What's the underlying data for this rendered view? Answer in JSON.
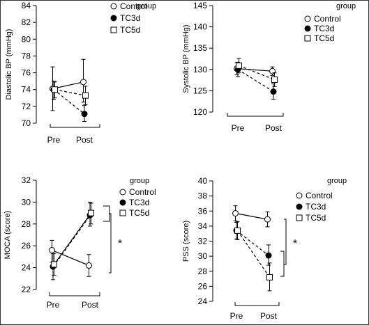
{
  "chart_data": [
    {
      "type": "line",
      "ylabel": "Diastolic BP (mmHg)",
      "x_categories": [
        "Pre",
        "Post"
      ],
      "yticks": [
        70,
        72,
        74,
        76,
        78,
        80,
        82,
        84
      ],
      "ylim": [
        70,
        84
      ],
      "legend_title": "group",
      "legend": [
        "Control",
        "TC3d",
        "TC5d"
      ],
      "series": [
        {
          "name": "Control",
          "marker": "open-circle",
          "values": [
            74.1,
            74.9
          ],
          "err_low": [
            71.5,
            72.5
          ],
          "err_high": [
            76.7,
            77.6
          ]
        },
        {
          "name": "TC3d",
          "marker": "filled-circle",
          "values": [
            74.0,
            71.1
          ],
          "err_low": [
            72.8,
            70.2
          ],
          "err_high": [
            75.0,
            72.1
          ]
        },
        {
          "name": "TC5d",
          "marker": "open-square",
          "values": [
            74.0,
            73.3
          ],
          "err_low": [
            73.0,
            72.2
          ],
          "err_high": [
            74.9,
            74.4
          ]
        }
      ],
      "brackets": []
    },
    {
      "type": "line",
      "ylabel": "Systolic BP (mmHg)",
      "x_categories": [
        "Pre",
        "Post"
      ],
      "yticks": [
        120,
        125,
        130,
        135,
        140,
        145
      ],
      "ylim": [
        120,
        145
      ],
      "legend_title": "group",
      "legend": [
        "Control",
        "TC3d",
        "TC5d"
      ],
      "series": [
        {
          "name": "Control",
          "marker": "open-circle",
          "values": [
            130.2,
            129.6
          ],
          "err_low": [
            128.8,
            128.6
          ],
          "err_high": [
            131.6,
            130.6
          ]
        },
        {
          "name": "TC3d",
          "marker": "filled-circle",
          "values": [
            130.0,
            124.8
          ],
          "err_low": [
            128.3,
            123.0
          ],
          "err_high": [
            131.7,
            126.6
          ]
        },
        {
          "name": "TC5d",
          "marker": "open-square",
          "values": [
            130.9,
            127.6
          ],
          "err_low": [
            129.2,
            126.0
          ],
          "err_high": [
            132.6,
            129.2
          ]
        }
      ],
      "brackets": []
    },
    {
      "type": "line",
      "ylabel": "MOCA (score)",
      "x_categories": [
        "Pre",
        "Post"
      ],
      "yticks": [
        22,
        24,
        26,
        28,
        30,
        32
      ],
      "ylim": [
        22,
        32
      ],
      "legend_title": "group",
      "legend": [
        "Control",
        "TC3d",
        "TC5d"
      ],
      "series": [
        {
          "name": "Control",
          "marker": "open-circle",
          "values": [
            25.6,
            24.2
          ],
          "err_low": [
            24.5,
            23.2
          ],
          "err_high": [
            26.5,
            25.2
          ]
        },
        {
          "name": "TC3d",
          "marker": "filled-circle",
          "values": [
            24.1,
            28.8
          ],
          "err_low": [
            22.9,
            27.8
          ],
          "err_high": [
            25.3,
            30.0
          ]
        },
        {
          "name": "TC5d",
          "marker": "open-square",
          "values": [
            24.3,
            29.0
          ],
          "err_low": [
            23.3,
            28.0
          ],
          "err_high": [
            25.3,
            29.9
          ]
        }
      ],
      "brackets": [
        {
          "label": "*"
        }
      ]
    },
    {
      "type": "line",
      "ylabel": "PSS (score)",
      "x_categories": [
        "Pre",
        "Post"
      ],
      "yticks": [
        24,
        26,
        28,
        30,
        32,
        34,
        36,
        38,
        40
      ],
      "ylim": [
        24,
        40
      ],
      "legend_title": "group",
      "legend": [
        "Control",
        "TC3d",
        "TC5d"
      ],
      "series": [
        {
          "name": "Control",
          "marker": "open-circle",
          "values": [
            35.7,
            34.9
          ],
          "err_low": [
            34.7,
            33.9
          ],
          "err_high": [
            36.7,
            35.9
          ]
        },
        {
          "name": "TC3d",
          "marker": "filled-circle",
          "values": [
            33.4,
            30.1
          ],
          "err_low": [
            32.3,
            28.8
          ],
          "err_high": [
            34.5,
            31.5
          ]
        },
        {
          "name": "TC5d",
          "marker": "open-square",
          "values": [
            33.4,
            27.2
          ],
          "err_low": [
            32.2,
            25.4
          ],
          "err_high": [
            34.6,
            29.1
          ]
        }
      ],
      "brackets": [
        {
          "label": "*"
        }
      ]
    }
  ]
}
